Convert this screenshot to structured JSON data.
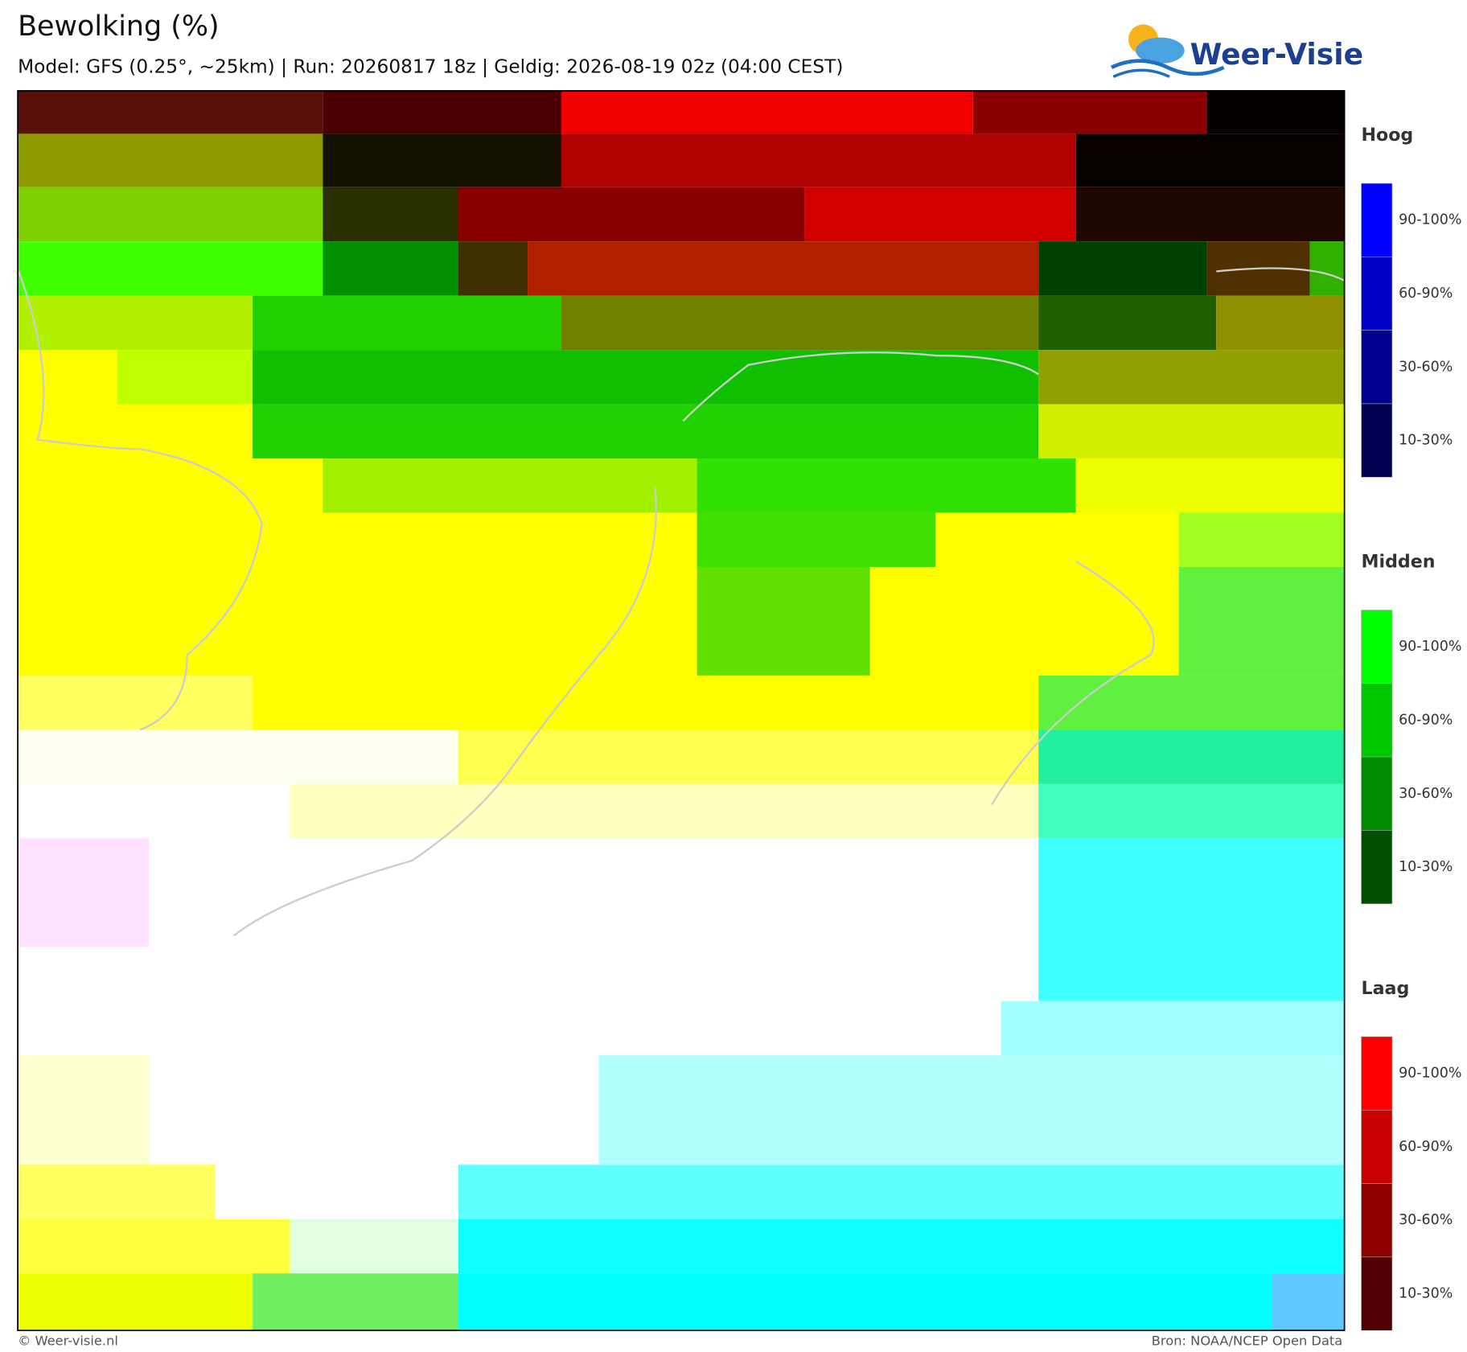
{
  "header": {
    "title": "Bewolking (%)",
    "subtitle": "Model: GFS (0.25°, ~25km)  |  Run: 20260817 18z  |  Geldig: 2026-08-19 02z (04:00 CEST)",
    "logo": "Weer-Visie"
  },
  "legend": [
    {
      "title": "Hoog",
      "labels": [
        "90-100%",
        "60-90%",
        "30-60%",
        "10-30%"
      ],
      "colors": [
        "#0000ff",
        "#0000c8",
        "#00008c",
        "#000050"
      ]
    },
    {
      "title": "Midden",
      "labels": [
        "90-100%",
        "60-90%",
        "30-60%",
        "10-30%"
      ],
      "colors": [
        "#00ff00",
        "#00c800",
        "#008c00",
        "#005000"
      ]
    },
    {
      "title": "Laag",
      "labels": [
        "90-100%",
        "60-90%",
        "30-60%",
        "10-30%"
      ],
      "colors": [
        "#ff0000",
        "#c80000",
        "#8c0000",
        "#500000"
      ]
    }
  ],
  "footer": {
    "left": "© Weer-visie.nl",
    "right": "Bron: NOAA/NCEP Open Data"
  }
}
